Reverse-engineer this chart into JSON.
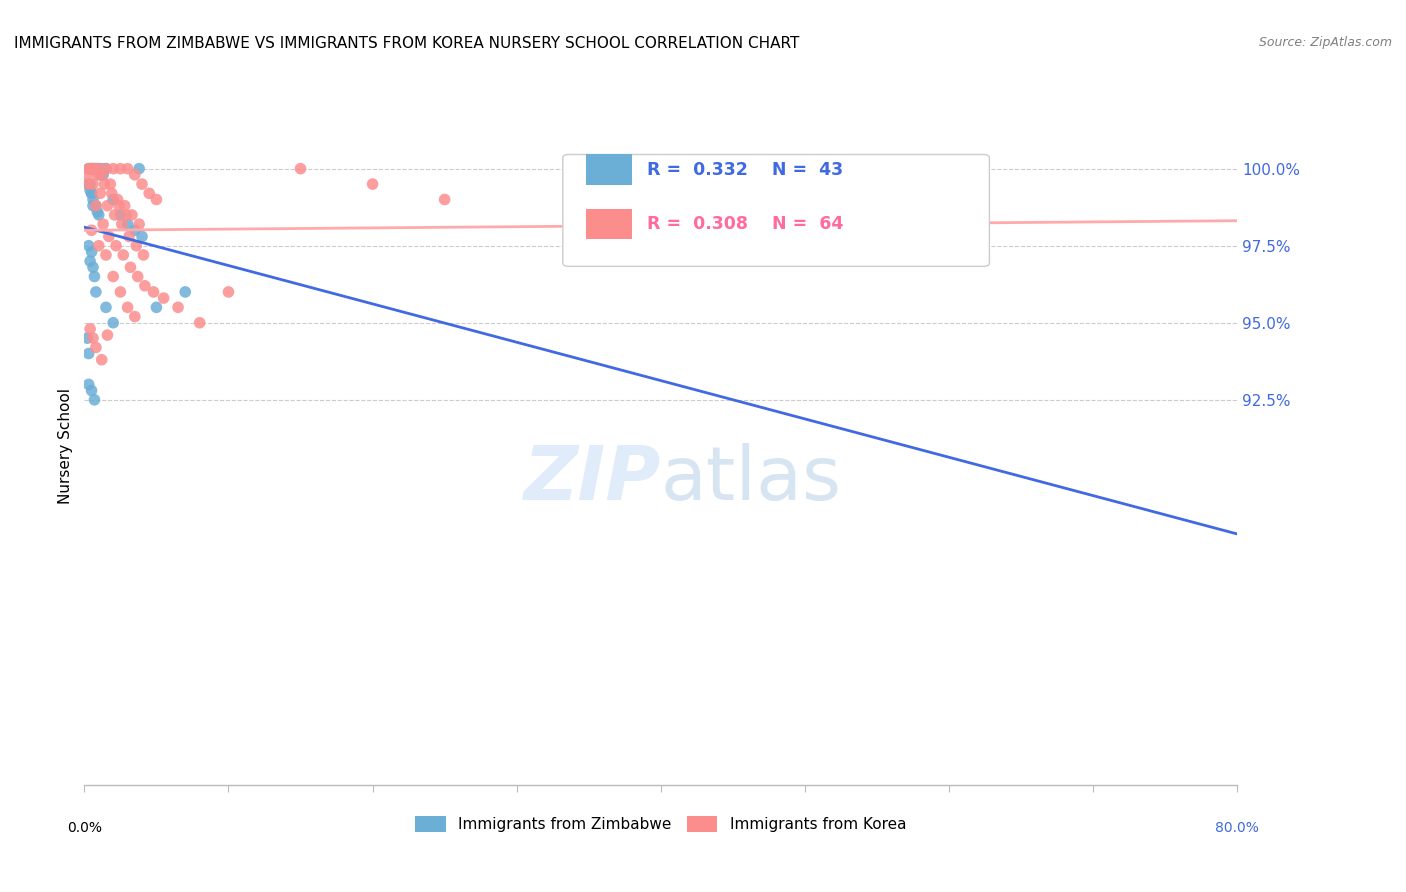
{
  "title": "IMMIGRANTS FROM ZIMBABWE VS IMMIGRANTS FROM KOREA NURSERY SCHOOL CORRELATION CHART",
  "source": "Source: ZipAtlas.com",
  "ylabel": "Nursery School",
  "yaxis_values": [
    100.0,
    97.5,
    95.0,
    92.5
  ],
  "xlim": [
    0.0,
    80.0
  ],
  "ylim": [
    80.0,
    102.0
  ],
  "color_zimbabwe": "#6baed6",
  "color_korea": "#fc8d8d",
  "color_line_zimbabwe": "#4169e1",
  "color_line_korea": "#ffaaaa",
  "color_right_axis": "#4169e1",
  "zimbabwe_x": [
    0.5,
    0.8,
    1.0,
    1.2,
    1.5,
    0.3,
    0.4,
    0.6,
    0.7,
    0.9,
    1.1,
    1.3,
    0.2,
    0.4,
    0.5,
    0.6,
    0.8,
    0.9,
    1.0,
    2.0,
    2.5,
    3.0,
    3.5,
    4.0,
    0.3,
    0.5,
    0.4,
    0.6,
    0.7,
    0.8,
    1.5,
    2.0,
    0.2,
    0.3,
    3.8,
    0.4,
    0.5,
    0.6,
    5.0,
    7.0,
    0.3,
    0.5,
    0.7
  ],
  "zimbabwe_y": [
    100.0,
    100.0,
    100.0,
    100.0,
    100.0,
    100.0,
    100.0,
    100.0,
    100.0,
    100.0,
    99.8,
    99.8,
    99.5,
    99.3,
    99.2,
    99.0,
    98.8,
    98.6,
    98.5,
    99.0,
    98.5,
    98.2,
    98.0,
    97.8,
    97.5,
    97.3,
    97.0,
    96.8,
    96.5,
    96.0,
    95.5,
    95.0,
    94.5,
    94.0,
    100.0,
    99.5,
    99.2,
    98.8,
    95.5,
    96.0,
    93.0,
    92.8,
    92.5
  ],
  "korea_x": [
    0.5,
    1.0,
    1.5,
    2.0,
    2.5,
    3.0,
    3.5,
    4.0,
    4.5,
    5.0,
    0.3,
    0.7,
    1.2,
    1.8,
    2.3,
    2.8,
    3.3,
    3.8,
    0.4,
    0.9,
    1.4,
    1.9,
    2.4,
    2.9,
    0.6,
    1.1,
    1.6,
    2.1,
    2.6,
    3.1,
    3.6,
    4.1,
    0.8,
    1.3,
    1.7,
    2.2,
    2.7,
    3.2,
    3.7,
    4.2,
    4.8,
    5.5,
    6.5,
    8.0,
    10.0,
    15.0,
    20.0,
    25.0,
    40.0,
    60.0,
    0.2,
    0.3,
    1.0,
    2.0,
    3.0,
    0.5,
    1.5,
    2.5,
    3.5,
    0.4,
    0.6,
    0.8,
    1.2,
    1.6
  ],
  "korea_y": [
    100.0,
    100.0,
    100.0,
    100.0,
    100.0,
    100.0,
    99.8,
    99.5,
    99.2,
    99.0,
    100.0,
    100.0,
    99.8,
    99.5,
    99.0,
    98.8,
    98.5,
    98.2,
    100.0,
    99.8,
    99.5,
    99.2,
    98.8,
    98.5,
    99.5,
    99.2,
    98.8,
    98.5,
    98.2,
    97.8,
    97.5,
    97.2,
    98.8,
    98.2,
    97.8,
    97.5,
    97.2,
    96.8,
    96.5,
    96.2,
    96.0,
    95.8,
    95.5,
    95.0,
    96.0,
    100.0,
    99.5,
    99.0,
    98.5,
    98.0,
    99.8,
    99.5,
    97.5,
    96.5,
    95.5,
    98.0,
    97.2,
    96.0,
    95.2,
    94.8,
    94.5,
    94.2,
    93.8,
    94.6
  ]
}
